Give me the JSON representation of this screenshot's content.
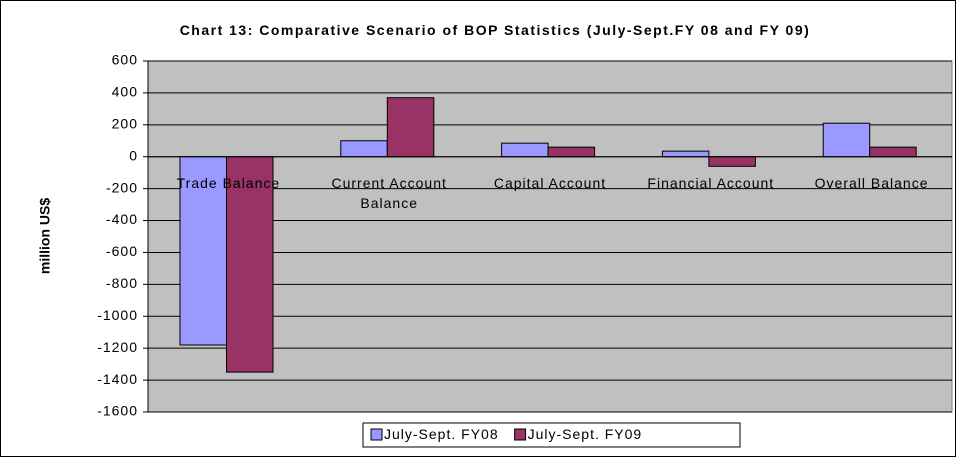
{
  "chart_data": {
    "type": "bar",
    "title": "Chart 13: Comparative Scenario of BOP Statistics (July-Sept.FY 08 and FY 09)",
    "y_label": "million US$",
    "categories": [
      "Trade Balance",
      "Current Account Balance",
      "Capital Account",
      "Financial Account",
      "Overall Balance"
    ],
    "series": [
      {
        "name": "July-Sept. FY08",
        "color": "#9999ff",
        "values": [
          -1180,
          100,
          85,
          35,
          210
        ]
      },
      {
        "name": "July-Sept. FY09",
        "color": "#993366",
        "values": [
          -1350,
          370,
          60,
          -60,
          60
        ]
      }
    ],
    "ylim": [
      -1600,
      600
    ],
    "yticks": [
      -1600,
      -1400,
      -1200,
      -1000,
      -800,
      -600,
      -400,
      -200,
      0,
      200,
      400,
      600
    ],
    "grid": true,
    "legend": "bottom",
    "plot_background": "#c0c0c0"
  }
}
